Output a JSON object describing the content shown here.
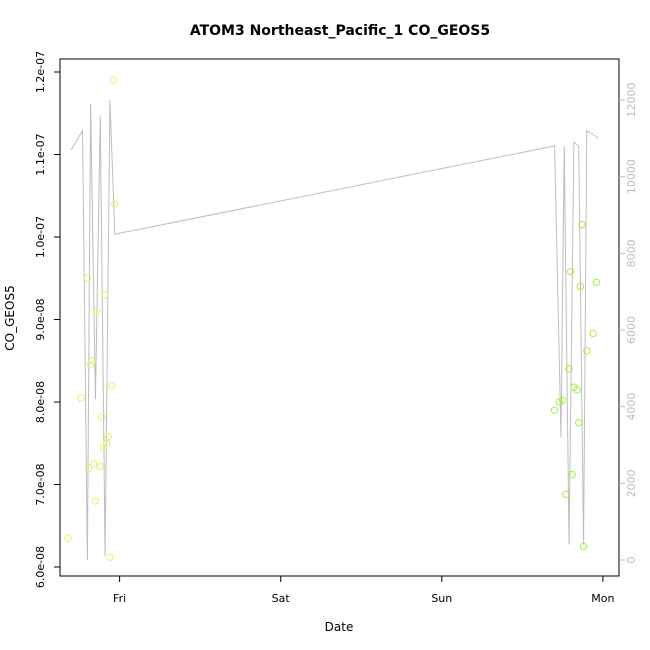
{
  "chart_data": {
    "type": "line",
    "title": "ATOM3 Northeast_Pacific_1 CO_GEOS5",
    "xlabel": "Date",
    "ylabel": "CO_GEOS5",
    "x_ticks": [
      "Fri",
      "Sat",
      "Sun",
      "Mon"
    ],
    "x_tick_days": [
      1,
      2,
      3,
      4
    ],
    "xlim_days": [
      0.63,
      4.1
    ],
    "ylim": [
      6e-08,
      1.2e-07
    ],
    "y_ticks": [
      6e-08,
      7e-08,
      8e-08,
      9e-08,
      1e-07,
      1.1e-07,
      1.2e-07
    ],
    "y_tick_labels": [
      "6.0e-08",
      "7.0e-08",
      "8.0e-08",
      "9.0e-08",
      "1.0e-07",
      "1.1e-07",
      "1.2e-07"
    ],
    "y2lim": [
      0,
      12000
    ],
    "y2_ticks": [
      0,
      2000,
      4000,
      6000,
      8000,
      10000,
      12000
    ],
    "y2_tick_labels": [
      "0",
      "2000",
      "4000",
      "6000",
      "8000",
      "10000",
      "12000"
    ],
    "grid": false,
    "colors": {
      "line": "#bdbdbd",
      "points_early": "#dcf56e",
      "points_late": "#a6ee4d",
      "axis": "#000000",
      "right_axis": "#bdbdbd"
    },
    "series": [
      {
        "axis": "right",
        "style": "line",
        "x_days": [
          0.7,
          0.77,
          0.8,
          0.82,
          0.85,
          0.88,
          0.91,
          0.94,
          0.97,
          3.7,
          3.74,
          3.76,
          3.79,
          3.82,
          3.85,
          3.88,
          3.9,
          3.94,
          3.97
        ],
        "y": [
          10700,
          11200,
          0,
          11900,
          4200,
          11600,
          100,
          12000,
          8500,
          10800,
          3200,
          10800,
          400,
          10900,
          10800,
          400,
          11200,
          11100,
          11000
        ]
      },
      {
        "axis": "left",
        "style": "points",
        "x_days": [
          0.68,
          0.76,
          0.8,
          0.81,
          0.82,
          0.83,
          0.84,
          0.85,
          0.86,
          0.88,
          0.89,
          0.9,
          0.91,
          0.92,
          0.93,
          0.94,
          0.95,
          0.96,
          0.97
        ],
        "y": [
          6.35e-08,
          8.05e-08,
          9.5e-08,
          7.2e-08,
          8.45e-08,
          8.5e-08,
          7.25e-08,
          6.8e-08,
          9.1e-08,
          7.22e-08,
          7.82e-08,
          7.45e-08,
          9.3e-08,
          7.5e-08,
          7.58e-08,
          6.12e-08,
          8.2e-08,
          1.19e-07,
          1.04e-07
        ],
        "color_key": "points_early"
      },
      {
        "axis": "left",
        "style": "points",
        "x_days": [
          3.7,
          3.73,
          3.75,
          3.77,
          3.79,
          3.8,
          3.81,
          3.82,
          3.84,
          3.85,
          3.86,
          3.87,
          3.88,
          3.9,
          3.94,
          3.96
        ],
        "y": [
          7.9e-08,
          8e-08,
          8.02e-08,
          6.88e-08,
          8.4e-08,
          9.58e-08,
          7.12e-08,
          8.18e-08,
          8.15e-08,
          7.75e-08,
          9.4e-08,
          1.015e-07,
          6.25e-08,
          8.62e-08,
          8.83e-08,
          9.45e-08
        ],
        "color_key": "points_late"
      }
    ]
  }
}
